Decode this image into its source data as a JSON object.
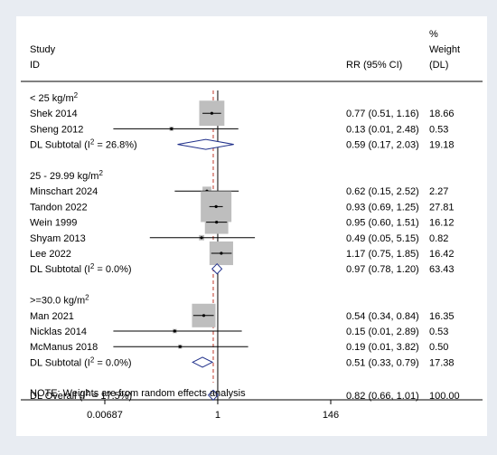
{
  "header": {
    "study": "Study",
    "id": "ID",
    "rr": "RR (95% CI)",
    "weight_line1": "%",
    "weight_line2": "Weight",
    "weight_line3": "(DL)"
  },
  "note": "NOTE: Weights are from random effects analysis",
  "colors": {
    "background": "#e8ecf2",
    "panel": "#ffffff",
    "weight_box": "#bebebe",
    "diamond": "#1f2f8a",
    "null_line": "#000000",
    "overall_line": "#c0392b"
  },
  "chart_data": {
    "type": "forest",
    "scale": "log",
    "xaxis_ticks": [
      {
        "value": 0.00687,
        "label": "0.00687"
      },
      {
        "value": 1,
        "label": "1"
      },
      {
        "value": 146,
        "label": "146"
      }
    ],
    "null_value": 1,
    "overall_value": 0.82,
    "groups": [
      {
        "label_main": "< 25 kg/m",
        "label_sup": "2",
        "studies": [
          {
            "name": "Shek 2014",
            "rr": 0.77,
            "lo": 0.51,
            "hi": 1.16,
            "text": "0.77 (0.51, 1.16)",
            "weight": "18.66",
            "w": 18.66
          },
          {
            "name": "Sheng 2012",
            "rr": 0.13,
            "lo": 0.01,
            "hi": 2.48,
            "text": "0.13 (0.01, 2.48)",
            "weight": "0.53",
            "w": 0.53
          }
        ],
        "subtotal": {
          "label": "DL Subtotal",
          "i2": " = 26.8%)",
          "rr": 0.59,
          "lo": 0.17,
          "hi": 2.03,
          "text": "0.59 (0.17, 2.03)",
          "weight": "19.18"
        }
      },
      {
        "label_main": "25 - 29.99 kg/m",
        "label_sup": "2",
        "studies": [
          {
            "name": "Minschart 2024",
            "rr": 0.62,
            "lo": 0.15,
            "hi": 2.52,
            "text": "0.62 (0.15, 2.52)",
            "weight": "2.27",
            "w": 2.27
          },
          {
            "name": "Tandon 2022",
            "rr": 0.93,
            "lo": 0.69,
            "hi": 1.25,
            "text": "0.93 (0.69, 1.25)",
            "weight": "27.81",
            "w": 27.81
          },
          {
            "name": "Wein 1999",
            "rr": 0.95,
            "lo": 0.6,
            "hi": 1.51,
            "text": "0.95 (0.60, 1.51)",
            "weight": "16.12",
            "w": 16.12
          },
          {
            "name": "Shyam 2013",
            "rr": 0.49,
            "lo": 0.05,
            "hi": 5.15,
            "text": "0.49 (0.05, 5.15)",
            "weight": "0.82",
            "w": 0.82
          },
          {
            "name": "Lee 2022",
            "rr": 1.17,
            "lo": 0.75,
            "hi": 1.85,
            "text": "1.17 (0.75, 1.85)",
            "weight": "16.42",
            "w": 16.42
          }
        ],
        "subtotal": {
          "label": "DL Subtotal",
          "i2": " = 0.0%)",
          "rr": 0.97,
          "lo": 0.78,
          "hi": 1.2,
          "text": "0.97 (0.78, 1.20)",
          "weight": "63.43"
        }
      },
      {
        "label_main": ">=30.0 kg/m",
        "label_sup": "2",
        "studies": [
          {
            "name": "Man 2021",
            "rr": 0.54,
            "lo": 0.34,
            "hi": 0.84,
            "text": "0.54 (0.34, 0.84)",
            "weight": "16.35",
            "w": 16.35
          },
          {
            "name": "Nicklas 2014",
            "rr": 0.15,
            "lo": 0.01,
            "hi": 2.89,
            "text": "0.15 (0.01, 2.89)",
            "weight": "0.53",
            "w": 0.53
          },
          {
            "name": "McManus 2018",
            "rr": 0.19,
            "lo": 0.01,
            "hi": 3.82,
            "text": "0.19 (0.01, 3.82)",
            "weight": "0.50",
            "w": 0.5
          }
        ],
        "subtotal": {
          "label": "DL Subtotal",
          "i2": " = 0.0%)",
          "rr": 0.51,
          "lo": 0.33,
          "hi": 0.79,
          "text": "0.51 (0.33, 0.79)",
          "weight": "17.38"
        }
      }
    ],
    "overall": {
      "label": "DL Overall",
      "i2": " = 17.5%)",
      "rr": 0.82,
      "lo": 0.66,
      "hi": 1.01,
      "text": "0.82 (0.66, 1.01)",
      "weight": "100.00"
    }
  }
}
